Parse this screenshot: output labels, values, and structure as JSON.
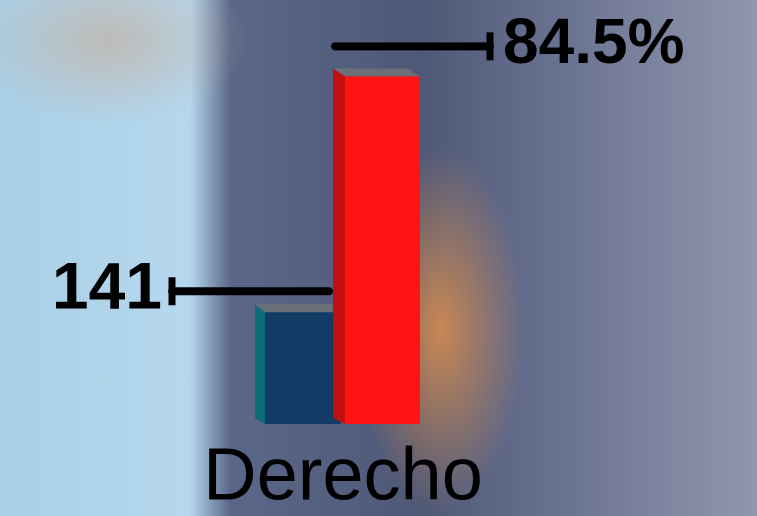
{
  "chart_data": {
    "type": "bar",
    "categories": [
      "Derecho"
    ],
    "series": [
      {
        "color": "#123c66",
        "values": [
          141
        ]
      },
      {
        "color": "#ff1414",
        "values": [
          84.5
        ],
        "value_labels": [
          "84.5%"
        ],
        "axis": "y2"
      }
    ],
    "ylim": [
      0,
      480
    ],
    "y2lim": [
      0,
      100
    ],
    "grid": false
  }
}
